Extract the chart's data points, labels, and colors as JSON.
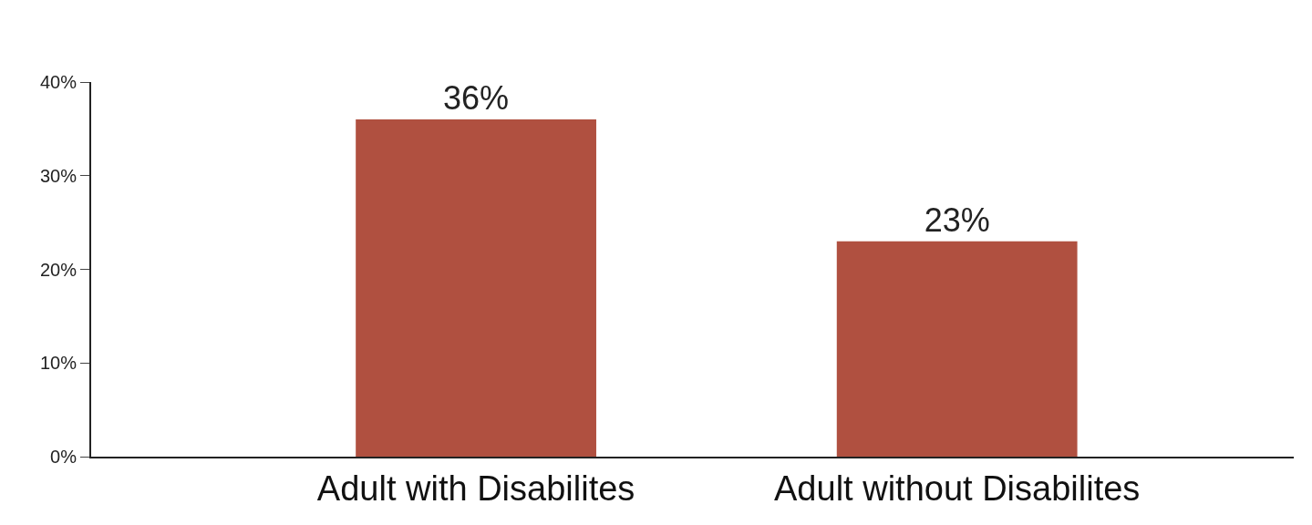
{
  "chart_data": {
    "type": "bar",
    "categories": [
      "Adult with Disabilites",
      "Adult without Disabilites"
    ],
    "values": [
      36,
      23
    ],
    "value_labels": [
      "36%",
      "23%"
    ],
    "color": "#b05040",
    "ylim": [
      0,
      40
    ],
    "yticks": [
      {
        "value": 0,
        "label": "0%"
      },
      {
        "value": 10,
        "label": "10%"
      },
      {
        "value": 20,
        "label": "20%"
      },
      {
        "value": 30,
        "label": "30%"
      },
      {
        "value": 40,
        "label": "40%"
      }
    ]
  }
}
